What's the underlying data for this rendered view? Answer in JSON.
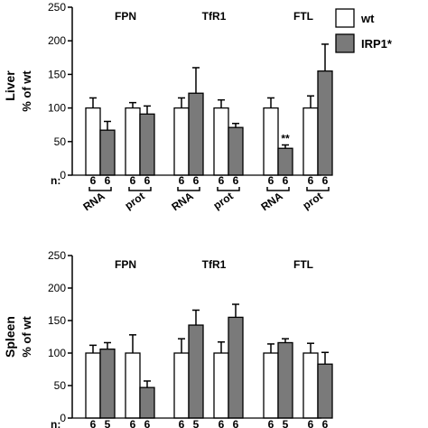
{
  "chart_data": [
    {
      "type": "bar",
      "tissue": "Liver",
      "ylabel": "% of wt",
      "ylim": [
        0,
        250
      ],
      "yticks": [
        0,
        50,
        100,
        150,
        200,
        250
      ],
      "genes": [
        "FPN",
        "TfR1",
        "FTL"
      ],
      "subgroups": [
        "RNA",
        "prot"
      ],
      "series": [
        {
          "name": "wt",
          "color": "#ffffff",
          "values": [
            100,
            100,
            100,
            100,
            100,
            100
          ],
          "errors": [
            15,
            8,
            15,
            12,
            15,
            18
          ]
        },
        {
          "name": "IRP1*",
          "color": "#7a7a7a",
          "values": [
            67,
            91,
            122,
            71,
            40,
            155
          ],
          "errors": [
            13,
            12,
            38,
            6,
            5,
            40
          ]
        }
      ],
      "n_label": "n:",
      "n": [
        6,
        6,
        6,
        6,
        6,
        6,
        6,
        6,
        6,
        6,
        6,
        6
      ],
      "annotations": [
        {
          "index": 4,
          "series": "IRP1*",
          "text": "**"
        }
      ]
    },
    {
      "type": "bar",
      "tissue": "Spleen",
      "ylabel": "% of wt",
      "ylim": [
        0,
        250
      ],
      "yticks": [
        0,
        50,
        100,
        150,
        200,
        250
      ],
      "genes": [
        "FPN",
        "TfR1",
        "FTL"
      ],
      "series": [
        {
          "name": "wt",
          "color": "#ffffff",
          "values": [
            100,
            100,
            100,
            100,
            100,
            100
          ],
          "errors": [
            12,
            28,
            22,
            17,
            14,
            15
          ]
        },
        {
          "name": "IRP1*",
          "color": "#7a7a7a",
          "values": [
            106,
            47,
            143,
            155,
            116,
            83
          ],
          "errors": [
            10,
            10,
            23,
            20,
            6,
            18
          ]
        }
      ],
      "n_label": "n:",
      "n": [
        6,
        5,
        6,
        6,
        6,
        5,
        6,
        6,
        6,
        5,
        6,
        6
      ]
    }
  ],
  "legend": [
    {
      "label": "wt",
      "color": "#ffffff"
    },
    {
      "label": "IRP1*",
      "color": "#7a7a7a"
    }
  ]
}
